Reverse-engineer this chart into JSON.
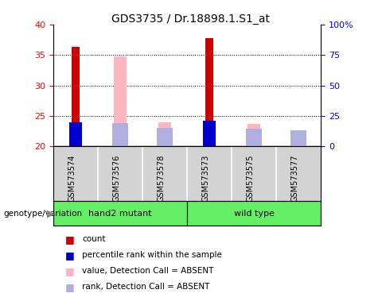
{
  "title": "GDS3735 / Dr.18898.1.S1_at",
  "samples": [
    "GSM573574",
    "GSM573576",
    "GSM573578",
    "GSM573573",
    "GSM573575",
    "GSM573577"
  ],
  "bar_bottom": 20,
  "red_values": [
    36.3,
    null,
    null,
    37.8,
    null,
    null
  ],
  "red_color": "#cc0000",
  "blue_values": [
    24.0,
    null,
    null,
    24.2,
    null,
    null
  ],
  "blue_color": "#0000cc",
  "pink_values": [
    null,
    34.8,
    24.0,
    null,
    23.7,
    21.3
  ],
  "pink_color": "#FFB6C1",
  "lavender_values": [
    null,
    23.8,
    23.1,
    null,
    22.9,
    22.7
  ],
  "lavender_color": "#b0b0e0",
  "ylim_left": [
    20,
    40
  ],
  "ylim_right": [
    0,
    100
  ],
  "yticks_left": [
    20,
    25,
    30,
    35,
    40
  ],
  "yticks_right": [
    0,
    25,
    50,
    75,
    100
  ],
  "ytick_labels_right": [
    "0",
    "25",
    "50",
    "75",
    "100%"
  ],
  "grid_values": [
    25,
    30,
    35
  ],
  "legend_items": [
    {
      "label": "count",
      "color": "#cc0000"
    },
    {
      "label": "percentile rank within the sample",
      "color": "#0000cc"
    },
    {
      "label": "value, Detection Call = ABSENT",
      "color": "#FFB6C1"
    },
    {
      "label": "rank, Detection Call = ABSENT",
      "color": "#b0b0e0"
    }
  ],
  "gray_bg": "#d3d3d3",
  "green_color": "#66ee66",
  "plot_bg_color": "#ffffff",
  "red_bar_width": 0.18,
  "blue_bar_width": 0.28,
  "pink_bar_width": 0.28,
  "lavender_bar_width": 0.35
}
